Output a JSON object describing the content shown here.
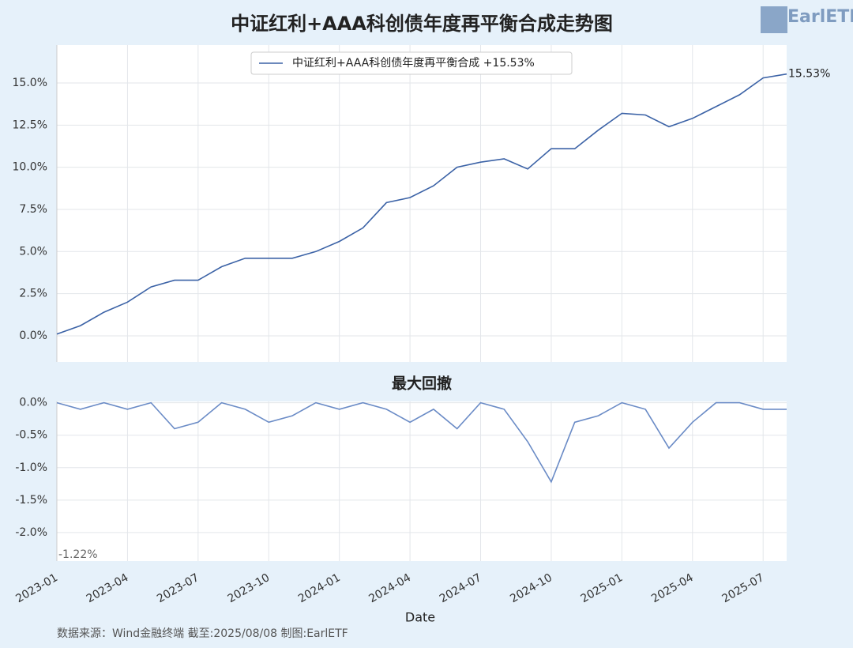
{
  "logo": "EarlETF",
  "source": "数据来源：Wind金融终端 截至:2025/08/08 制图:EarlETF",
  "chart_data": [
    {
      "type": "line",
      "title": "中证红利+AAA科创债年度再平衡合成走势图",
      "x": [
        "2023-01",
        "2023-02",
        "2023-03",
        "2023-04",
        "2023-05",
        "2023-06",
        "2023-07",
        "2023-08",
        "2023-09",
        "2023-10",
        "2023-11",
        "2023-12",
        "2024-01",
        "2024-02",
        "2024-03",
        "2024-04",
        "2024-05",
        "2024-06",
        "2024-07",
        "2024-08",
        "2024-09",
        "2024-10",
        "2024-11",
        "2024-12",
        "2025-01",
        "2025-02",
        "2025-03",
        "2025-04",
        "2025-05",
        "2025-06",
        "2025-07",
        "2025-08"
      ],
      "series": [
        {
          "name": "中证红利+AAA科创债年度再平衡合成  +15.53%",
          "color": "#3b62a6",
          "values": [
            0.1,
            0.6,
            1.4,
            2.0,
            2.9,
            3.3,
            3.3,
            4.1,
            4.6,
            4.6,
            4.6,
            5.0,
            5.6,
            6.4,
            7.9,
            8.2,
            8.9,
            10.0,
            10.3,
            10.5,
            9.9,
            11.1,
            11.1,
            12.2,
            13.2,
            13.1,
            12.4,
            12.9,
            13.6,
            14.3,
            15.3,
            15.53
          ],
          "value_labels": [
            null,
            null,
            null,
            null,
            null,
            null,
            null,
            null,
            null,
            null,
            null,
            null,
            null,
            null,
            null,
            null,
            null,
            null,
            null,
            null,
            null,
            null,
            null,
            null,
            null,
            null,
            null,
            null,
            null,
            null,
            null,
            "15.53%"
          ]
        }
      ],
      "xlim": [
        "2023-01",
        "2025-08"
      ],
      "xticks": [
        "2023-01",
        "2023-04",
        "2023-07",
        "2023-10",
        "2024-01",
        "2024-04",
        "2024-07",
        "2024-10",
        "2025-01",
        "2025-04",
        "2025-07"
      ],
      "ylim": [
        -1.55,
        17.25
      ],
      "yticks": [
        {
          "value": 0,
          "label": "0.0%"
        },
        {
          "value": 2.5,
          "label": "2.5%"
        },
        {
          "value": 5,
          "label": "5.0%"
        },
        {
          "value": 7.5,
          "label": "7.5%"
        },
        {
          "value": 10,
          "label": "10.0%"
        },
        {
          "value": 12.5,
          "label": "12.5%"
        },
        {
          "value": 15,
          "label": "15.0%"
        }
      ],
      "grid": true,
      "legend": "upper center"
    },
    {
      "type": "line",
      "title": "最大回撤",
      "x": [
        "2023-01",
        "2023-02",
        "2023-03",
        "2023-04",
        "2023-05",
        "2023-06",
        "2023-07",
        "2023-08",
        "2023-09",
        "2023-10",
        "2023-11",
        "2023-12",
        "2024-01",
        "2024-02",
        "2024-03",
        "2024-04",
        "2024-05",
        "2024-06",
        "2024-07",
        "2024-08",
        "2024-09",
        "2024-10",
        "2024-11",
        "2024-12",
        "2025-01",
        "2025-02",
        "2025-03",
        "2025-04",
        "2025-05",
        "2025-06",
        "2025-07",
        "2025-08"
      ],
      "series": [
        {
          "name": "最大回撤",
          "color": "#6a8bc6",
          "values": [
            0,
            -0.1,
            0,
            -0.1,
            0,
            -0.4,
            -0.3,
            0,
            -0.1,
            -0.3,
            -0.2,
            0,
            -0.1,
            0,
            -0.1,
            -0.3,
            -0.1,
            -0.4,
            0,
            -0.1,
            -0.6,
            -1.22,
            -0.3,
            -0.2,
            0,
            -0.1,
            -0.7,
            -0.3,
            0,
            0,
            -0.1,
            -0.1
          ]
        }
      ],
      "annotation": "-1.22%",
      "xlabel": "Date",
      "xlim": [
        "2023-01",
        "2025-08"
      ],
      "xticks": [
        "2023-01",
        "2023-04",
        "2023-07",
        "2023-10",
        "2024-01",
        "2024-04",
        "2024-07",
        "2024-10",
        "2025-01",
        "2025-04",
        "2025-07"
      ],
      "ylim": [
        -2.44,
        0.02
      ],
      "yticks": [
        {
          "value": 0,
          "label": "0.0%"
        },
        {
          "value": -0.5,
          "label": "-0.5%"
        },
        {
          "value": -1,
          "label": "-1.0%"
        },
        {
          "value": -1.5,
          "label": "-1.5%"
        },
        {
          "value": -2,
          "label": "-2.0%"
        }
      ],
      "grid": true
    }
  ]
}
